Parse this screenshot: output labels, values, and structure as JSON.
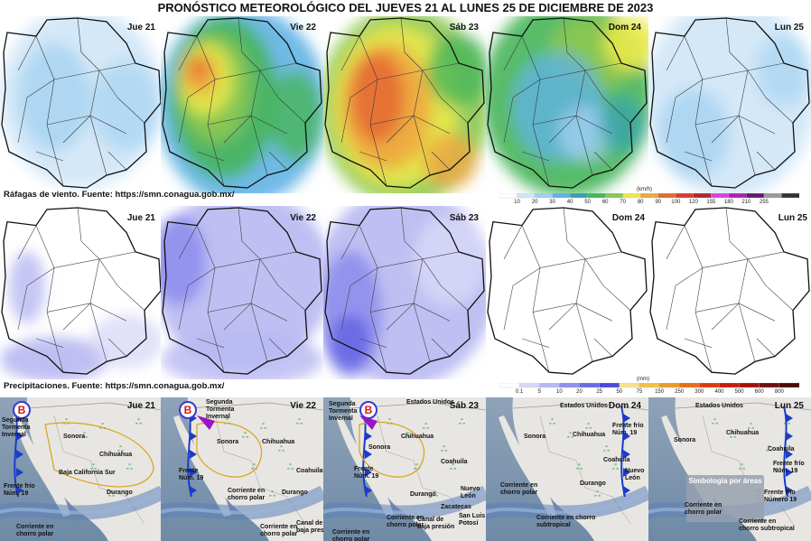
{
  "title": "PRONÓSTICO METEOROLÓGICO DEL JUEVES 21 AL LUNES 25 DE DICIEMBRE DE 2023",
  "days": [
    "Jue 21",
    "Vie 22",
    "Sáb 23",
    "Dom 24",
    "Lun 25"
  ],
  "wind": {
    "source": "Ráfagas de viento.  Fuente: https://smn.conagua.gob.mx/",
    "unit": "(km/h)",
    "ticks": [
      "10",
      "20",
      "30",
      "40",
      "50",
      "60",
      "70",
      "80",
      "90",
      "100",
      "120",
      "155",
      "180",
      "210",
      "255"
    ],
    "colors": [
      "#ffffff",
      "#cfe6f7",
      "#9fd0f0",
      "#5fb3e4",
      "#34a0b4",
      "#47b55a",
      "#8cc850",
      "#e9e94a",
      "#f0a640",
      "#e46b35",
      "#d93a2f",
      "#b32434",
      "#e040e0",
      "#b020b0",
      "#601a70",
      "#999999",
      "#333333"
    ]
  },
  "precip": {
    "source": "Precipitaciones.  Fuente: https://smn.conagua.gob.mx/",
    "unit": "(mm)",
    "ticks": [
      "0.1",
      "5",
      "10",
      "20",
      "25",
      "50",
      "75",
      "150",
      "250",
      "300",
      "400",
      "500",
      "600",
      "800"
    ],
    "colors": [
      "#ffffff",
      "#d9d9f7",
      "#b8b8f2",
      "#9090ee",
      "#6a6ae6",
      "#4a4ad8",
      "#f7e18a",
      "#f1c04a",
      "#ec9a2a",
      "#e86d1a",
      "#dd3a10",
      "#c51c0c",
      "#a3100a",
      "#70100a",
      "#4a0808"
    ]
  },
  "synoptic": {
    "panels": [
      {
        "day": "Jue 21",
        "labels": [
          "Segunda",
          "Tormenta",
          "Invernal",
          "Frente frío",
          "Núm. 19",
          "Sonora",
          "Chihuahua",
          "Baja California Sur",
          "Durango",
          "Corriente en",
          "chorro polar"
        ]
      },
      {
        "day": "Vie 22",
        "labels": [
          "Segunda",
          "Tormenta",
          "Invernal",
          "Sonora",
          "Chihuahua",
          "Frente",
          "Núm. 19",
          "Corriente en",
          "chorro polar",
          "Corriente en",
          "chorro polar",
          "Canal de",
          "baja presión",
          "Durango",
          "Coahuila"
        ]
      },
      {
        "day": "Sáb 23",
        "labels": [
          "Estados Unidos",
          "Segunda",
          "Tormenta",
          "Invernal",
          "Chihuahua",
          "Sonora",
          "Frente",
          "Núm. 19",
          "Coahuila",
          "Nuevo",
          "León",
          "Durango",
          "Corriente en",
          "chorro polar",
          "Canal de",
          "baja presión",
          "Zacatecas",
          "San Luis",
          "Potosí",
          "Corriente en",
          "chorro polar"
        ]
      },
      {
        "day": "Dom 24",
        "labels": [
          "Estados Unidos",
          "Sonora",
          "Chihuahua",
          "Frente frío",
          "Núm. 19",
          "Coahuila",
          "Nuevo",
          "León",
          "Durango",
          "Corriente en",
          "chorro polar",
          "Corriente en chorro",
          "subtropical"
        ]
      },
      {
        "day": "Lun 25",
        "labels": [
          "Estados Unidos",
          "Sonora",
          "Chihuahua",
          "Frente frío",
          "Núm. 19",
          "Coahuila",
          "Simbología por áreas",
          "Corriente en",
          "chorro polar",
          "Frente frío",
          "Número 19",
          "Corriente en",
          "chorro subtropical"
        ]
      }
    ],
    "symbols": {
      "low_pressure": "B",
      "front_color": "#1a3cc8",
      "storm_color": "#9a14c8"
    }
  }
}
